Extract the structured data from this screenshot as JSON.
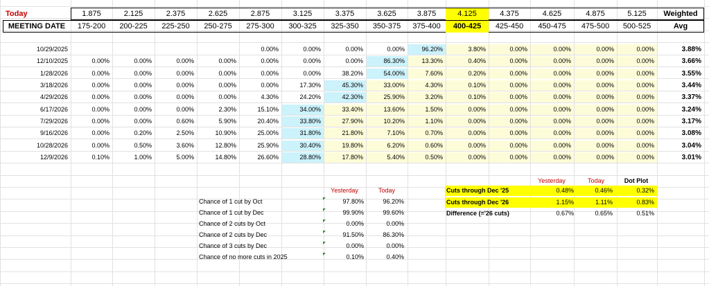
{
  "header": {
    "today_label": "Today",
    "rate_mids": [
      "1.875",
      "2.125",
      "2.375",
      "2.625",
      "2.875",
      "3.125",
      "3.375",
      "3.625",
      "3.875",
      "4.125",
      "4.375",
      "4.625",
      "4.875",
      "5.125"
    ],
    "weighted_label": "Weighted",
    "meeting_label": "MEETING DATE",
    "ranges": [
      "175-200",
      "200-225",
      "225-250",
      "250-275",
      "275-300",
      "300-325",
      "325-350",
      "350-375",
      "375-400",
      "400-425",
      "425-450",
      "450-475",
      "475-500",
      "500-525"
    ],
    "avg_label": "Avg"
  },
  "colors": {
    "light_blue": "#ccf2fb",
    "light_yellow": "#fdfcd8",
    "bright_yellow": "#ffff00",
    "red_label": "#c00000"
  },
  "meetings": [
    {
      "date": "10/29/2025",
      "cells": [
        "",
        "",
        "",
        "",
        "0.00%",
        "0.00%",
        "0.00%",
        "0.00%",
        "96.20%",
        "3.80%",
        "0.00%",
        "0.00%",
        "0.00%",
        "0.00%"
      ],
      "avg": "3.88%",
      "blue": [
        8
      ]
    },
    {
      "date": "12/10/2025",
      "cells": [
        "0.00%",
        "0.00%",
        "0.00%",
        "0.00%",
        "0.00%",
        "0.00%",
        "0.00%",
        "86.30%",
        "13.30%",
        "0.40%",
        "0.00%",
        "0.00%",
        "0.00%",
        "0.00%"
      ],
      "avg": "3.66%",
      "blue": [
        7
      ]
    },
    {
      "date": "1/28/2026",
      "cells": [
        "0.00%",
        "0.00%",
        "0.00%",
        "0.00%",
        "0.00%",
        "0.00%",
        "38.20%",
        "54.00%",
        "7.60%",
        "0.20%",
        "0.00%",
        "0.00%",
        "0.00%",
        "0.00%"
      ],
      "avg": "3.55%",
      "blue": [
        7
      ]
    },
    {
      "date": "3/18/2026",
      "cells": [
        "0.00%",
        "0.00%",
        "0.00%",
        "0.00%",
        "0.00%",
        "17.30%",
        "45.30%",
        "33.00%",
        "4.30%",
        "0.10%",
        "0.00%",
        "0.00%",
        "0.00%",
        "0.00%"
      ],
      "avg": "3.44%",
      "blue": [
        6
      ]
    },
    {
      "date": "4/29/2026",
      "cells": [
        "0.00%",
        "0.00%",
        "0.00%",
        "0.00%",
        "4.30%",
        "24.20%",
        "42.30%",
        "25.90%",
        "3.20%",
        "0.10%",
        "0.00%",
        "0.00%",
        "0.00%",
        "0.00%"
      ],
      "avg": "3.37%",
      "blue": [
        6
      ]
    },
    {
      "date": "6/17/2026",
      "cells": [
        "0.00%",
        "0.00%",
        "0.00%",
        "2.30%",
        "15.10%",
        "34.00%",
        "33.40%",
        "13.60%",
        "1.50%",
        "0.00%",
        "0.00%",
        "0.00%",
        "0.00%",
        "0.00%"
      ],
      "avg": "3.24%",
      "blue": [
        5
      ]
    },
    {
      "date": "7/29/2026",
      "cells": [
        "0.00%",
        "0.00%",
        "0.60%",
        "5.90%",
        "20.40%",
        "33.80%",
        "27.90%",
        "10.20%",
        "1.10%",
        "0.00%",
        "0.00%",
        "0.00%",
        "0.00%",
        "0.00%"
      ],
      "avg": "3.17%",
      "blue": [
        5
      ]
    },
    {
      "date": "9/16/2026",
      "cells": [
        "0.00%",
        "0.20%",
        "2.50%",
        "10.90%",
        "25.00%",
        "31.80%",
        "21.80%",
        "7.10%",
        "0.70%",
        "0.00%",
        "0.00%",
        "0.00%",
        "0.00%",
        "0.00%"
      ],
      "avg": "3.08%",
      "blue": [
        5
      ]
    },
    {
      "date": "10/28/2026",
      "cells": [
        "0.00%",
        "0.50%",
        "3.60%",
        "12.80%",
        "25.90%",
        "30.40%",
        "19.80%",
        "6.20%",
        "0.60%",
        "0.00%",
        "0.00%",
        "0.00%",
        "0.00%",
        "0.00%"
      ],
      "avg": "3.04%",
      "blue": [
        5
      ]
    },
    {
      "date": "12/9/2026",
      "cells": [
        "0.10%",
        "1.00%",
        "5.00%",
        "14.80%",
        "26.60%",
        "28.80%",
        "17.80%",
        "5.40%",
        "0.50%",
        "0.00%",
        "0.00%",
        "0.00%",
        "0.00%",
        "0.00%"
      ],
      "avg": "3.01%",
      "blue": [
        5
      ]
    }
  ],
  "chances": {
    "yesterday_label": "Yesterday",
    "today_label": "Today",
    "rows": [
      {
        "label": "Chance of 1 cut by Oct",
        "yesterday": "97.80%",
        "today": "96.20%"
      },
      {
        "label": "Chance of 1 cut by Dec",
        "yesterday": "99.90%",
        "today": "99.60%"
      },
      {
        "label": "Chance of 2 cuts by Oct",
        "yesterday": "0.00%",
        "today": "0.00%"
      },
      {
        "label": "Chance of 2 cuts by Dec",
        "yesterday": "91.50%",
        "today": "86.30%"
      },
      {
        "label": "Chance of 3 cuts by Dec",
        "yesterday": "0.00%",
        "today": "0.00%"
      },
      {
        "label": "Chance of no more cuts in 2025",
        "yesterday": "0.10%",
        "today": "0.40%"
      }
    ]
  },
  "cuts": {
    "yesterday_label": "Yesterday",
    "today_label": "Today",
    "dot_label": "Dot Plot",
    "rows": [
      {
        "label": "Cuts through Dec '25",
        "yesterday": "0.48%",
        "today": "0.46%",
        "dot": "0.32%",
        "highlight": true
      },
      {
        "label": "Cuts through Dec '26",
        "yesterday": "1.15%",
        "today": "1.11%",
        "dot": "0.83%",
        "highlight": true
      },
      {
        "label": "Difference (='26 cuts)",
        "yesterday": "0.67%",
        "today": "0.65%",
        "dot": "0.51%",
        "highlight": false
      }
    ]
  }
}
